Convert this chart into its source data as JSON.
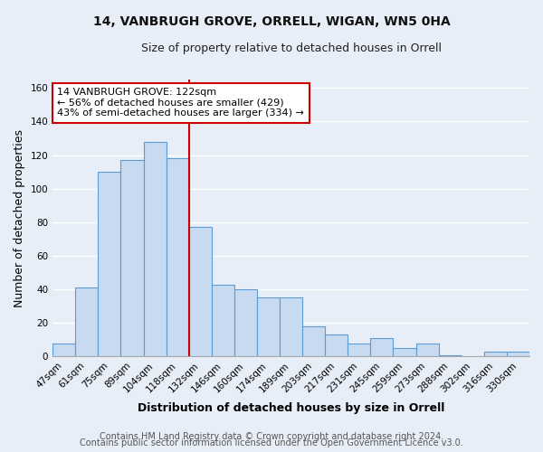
{
  "title": "14, VANBRUGH GROVE, ORRELL, WIGAN, WN5 0HA",
  "subtitle": "Size of property relative to detached houses in Orrell",
  "xlabel": "Distribution of detached houses by size in Orrell",
  "ylabel": "Number of detached properties",
  "footnote1": "Contains HM Land Registry data © Crown copyright and database right 2024.",
  "footnote2": "Contains public sector information licensed under the Open Government Licence v3.0.",
  "categories": [
    "47sqm",
    "61sqm",
    "75sqm",
    "89sqm",
    "104sqm",
    "118sqm",
    "132sqm",
    "146sqm",
    "160sqm",
    "174sqm",
    "189sqm",
    "203sqm",
    "217sqm",
    "231sqm",
    "245sqm",
    "259sqm",
    "273sqm",
    "288sqm",
    "302sqm",
    "316sqm",
    "330sqm"
  ],
  "values": [
    8,
    41,
    110,
    117,
    128,
    118,
    77,
    43,
    40,
    35,
    35,
    18,
    13,
    8,
    11,
    5,
    8,
    1,
    0,
    3,
    3
  ],
  "bar_color": "#c8daef",
  "bar_edge_color": "#5b9bd5",
  "vline_x": 5.5,
  "vline_color": "#cc0000",
  "annotation_title": "14 VANBRUGH GROVE: 122sqm",
  "annotation_line1": "← 56% of detached houses are smaller (429)",
  "annotation_line2": "43% of semi-detached houses are larger (334) →",
  "annotation_box_facecolor": "#ffffff",
  "annotation_box_edgecolor": "#cc0000",
  "ylim": [
    0,
    165
  ],
  "yticks": [
    0,
    20,
    40,
    60,
    80,
    100,
    120,
    140,
    160
  ],
  "background_color": "#e8eef7",
  "grid_color": "#ffffff",
  "title_fontsize": 10,
  "subtitle_fontsize": 9,
  "axis_label_fontsize": 9,
  "tick_fontsize": 7.5,
  "footnote_fontsize": 7
}
